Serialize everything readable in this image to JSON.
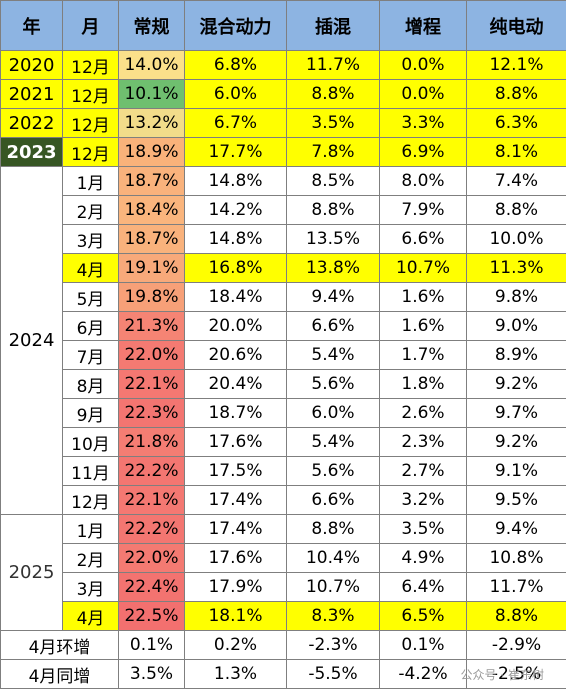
{
  "columns": [
    "年",
    "月",
    "常规",
    "混合动力",
    "插混",
    "增程",
    "纯电动"
  ],
  "colors": {
    "header": "#8db4e2",
    "highlight": "#ffff00",
    "y2023": "#375623",
    "cell_bg": "#ffffff"
  },
  "rows": [
    {
      "year": "2020",
      "month": "12月",
      "cells": [
        "14.0%",
        "6.8%",
        "11.7%",
        "0.0%",
        "12.1%"
      ],
      "highlight": true,
      "conv_color": "#fbe08a"
    },
    {
      "year": "2021",
      "month": "12月",
      "cells": [
        "10.1%",
        "6.0%",
        "8.8%",
        "0.0%",
        "8.8%"
      ],
      "highlight": true,
      "conv_color": "#6fbf6f"
    },
    {
      "year": "2022",
      "month": "12月",
      "cells": [
        "13.2%",
        "6.7%",
        "3.5%",
        "3.3%",
        "6.3%"
      ],
      "highlight": true,
      "conv_color": "#f2dc8a"
    },
    {
      "year": "2023",
      "month": "12月",
      "cells": [
        "18.9%",
        "17.7%",
        "7.8%",
        "6.9%",
        "8.1%"
      ],
      "highlight": true,
      "conv_color": "#f9b27a"
    },
    {
      "year": "2024",
      "month": "1月",
      "cells": [
        "18.7%",
        "14.8%",
        "8.5%",
        "8.0%",
        "7.4%"
      ],
      "highlight": false,
      "conv_color": "#f9b27c"
    },
    {
      "year": "",
      "month": "2月",
      "cells": [
        "18.4%",
        "14.2%",
        "8.8%",
        "7.9%",
        "8.8%"
      ],
      "highlight": false,
      "conv_color": "#fab57d"
    },
    {
      "year": "",
      "month": "3月",
      "cells": [
        "18.7%",
        "14.8%",
        "13.5%",
        "6.6%",
        "10.0%"
      ],
      "highlight": false,
      "conv_color": "#f9b27c"
    },
    {
      "year": "",
      "month": "4月",
      "cells": [
        "19.1%",
        "16.8%",
        "13.8%",
        "10.7%",
        "11.3%"
      ],
      "highlight": true,
      "conv_color": "#f8a97a"
    },
    {
      "year": "",
      "month": "5月",
      "cells": [
        "19.8%",
        "18.4%",
        "9.4%",
        "1.6%",
        "9.8%"
      ],
      "highlight": false,
      "conv_color": "#f7a078"
    },
    {
      "year": "",
      "month": "6月",
      "cells": [
        "21.3%",
        "20.0%",
        "6.6%",
        "1.6%",
        "9.0%"
      ],
      "highlight": false,
      "conv_color": "#f58474"
    },
    {
      "year": "",
      "month": "7月",
      "cells": [
        "22.0%",
        "20.6%",
        "5.4%",
        "1.7%",
        "8.9%"
      ],
      "highlight": false,
      "conv_color": "#f47a72"
    },
    {
      "year": "",
      "month": "8月",
      "cells": [
        "22.1%",
        "20.4%",
        "5.6%",
        "1.8%",
        "9.2%"
      ],
      "highlight": false,
      "conv_color": "#f47872"
    },
    {
      "year": "",
      "month": "9月",
      "cells": [
        "22.3%",
        "18.7%",
        "6.0%",
        "2.6%",
        "9.7%"
      ],
      "highlight": false,
      "conv_color": "#f37571"
    },
    {
      "year": "",
      "month": "10月",
      "cells": [
        "21.8%",
        "17.6%",
        "5.4%",
        "2.3%",
        "9.2%"
      ],
      "highlight": false,
      "conv_color": "#f47d73"
    },
    {
      "year": "",
      "month": "11月",
      "cells": [
        "22.2%",
        "17.5%",
        "5.6%",
        "2.7%",
        "9.1%"
      ],
      "highlight": false,
      "conv_color": "#f37671"
    },
    {
      "year": "",
      "month": "12月",
      "cells": [
        "22.1%",
        "17.4%",
        "6.6%",
        "3.2%",
        "9.5%"
      ],
      "highlight": false,
      "conv_color": "#f47872"
    },
    {
      "year": "2025",
      "month": "1月",
      "cells": [
        "22.2%",
        "17.4%",
        "8.8%",
        "3.5%",
        "9.4%"
      ],
      "highlight": false,
      "conv_color": "#f37671"
    },
    {
      "year": "",
      "month": "2月",
      "cells": [
        "22.0%",
        "17.6%",
        "10.4%",
        "4.9%",
        "10.8%"
      ],
      "highlight": false,
      "conv_color": "#f47a72"
    },
    {
      "year": "",
      "month": "3月",
      "cells": [
        "22.4%",
        "17.9%",
        "10.7%",
        "6.4%",
        "11.7%"
      ],
      "highlight": false,
      "conv_color": "#f37370"
    },
    {
      "year": "",
      "month": "4月",
      "cells": [
        "22.5%",
        "18.1%",
        "8.3%",
        "6.5%",
        "8.8%"
      ],
      "highlight": true,
      "conv_color": "#f3706f"
    }
  ],
  "footer": [
    {
      "label": "4月环增",
      "cells": [
        "0.1%",
        "0.2%",
        "-2.3%",
        "0.1%",
        "-2.9%"
      ]
    },
    {
      "label": "4月同增",
      "cells": [
        "3.5%",
        "1.3%",
        "-5.5%",
        "-4.2%",
        "-2.5%"
      ]
    }
  ],
  "watermark": "公众号 · 崔东树"
}
